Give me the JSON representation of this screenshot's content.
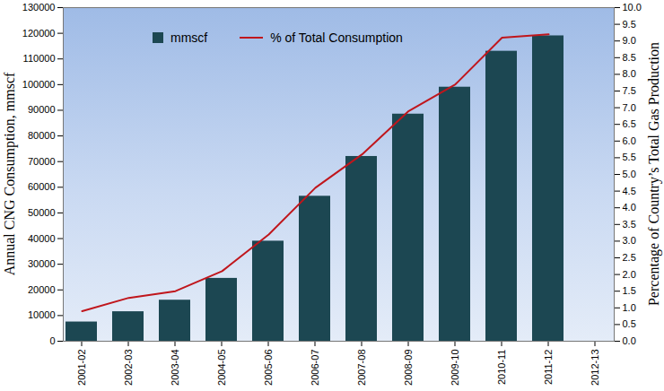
{
  "chart_data": {
    "type": "bar",
    "categories": [
      "2001-02",
      "2002-03",
      "2003-04",
      "2004-05",
      "2005-06",
      "2006-07",
      "2007-08",
      "2008-09",
      "2009-10",
      "2010-11",
      "2011-12",
      "2012-13"
    ],
    "ylabel": "Annual CNG Consumption, mmscf",
    "y2label": "Percentage of Country’s Total Gas Production",
    "ylim": [
      0,
      130000
    ],
    "yticks": [
      0,
      10000,
      20000,
      30000,
      40000,
      50000,
      60000,
      70000,
      80000,
      90000,
      100000,
      110000,
      120000,
      130000
    ],
    "y2lim": [
      0,
      10
    ],
    "y2ticks": [
      {
        "value": 0,
        "label": "0.0"
      },
      0.5,
      {
        "value": 1,
        "label": "1.0"
      },
      1.5,
      {
        "value": 2,
        "label": "2.0"
      },
      2.5,
      {
        "value": 3,
        "label": "3.0"
      },
      3.5,
      {
        "value": 4,
        "label": "4.0"
      },
      4.5,
      {
        "value": 5,
        "label": "5.0"
      },
      5.5,
      {
        "value": 6,
        "label": "6.0"
      },
      6.5,
      {
        "value": 7,
        "label": "7.0"
      },
      7.5,
      {
        "value": 8,
        "label": "8.0"
      },
      8.5,
      {
        "value": 9,
        "label": "9.0"
      },
      9.5,
      {
        "value": 10,
        "label": "10.0"
      }
    ],
    "grid": false,
    "legend": "top",
    "series": [
      {
        "name": "mmscf",
        "type": "bar",
        "color": "#1c4752",
        "values": [
          7500,
          11500,
          16000,
          24500,
          39000,
          56500,
          72000,
          88500,
          99000,
          113000,
          119000,
          null
        ]
      },
      {
        "name": "% of Total Consumption",
        "type": "line",
        "axis": "y2",
        "color": "#c0161c",
        "values": [
          0.9,
          1.3,
          1.5,
          2.1,
          3.2,
          4.6,
          5.6,
          6.9,
          7.7,
          9.1,
          9.2,
          null
        ]
      }
    ]
  }
}
